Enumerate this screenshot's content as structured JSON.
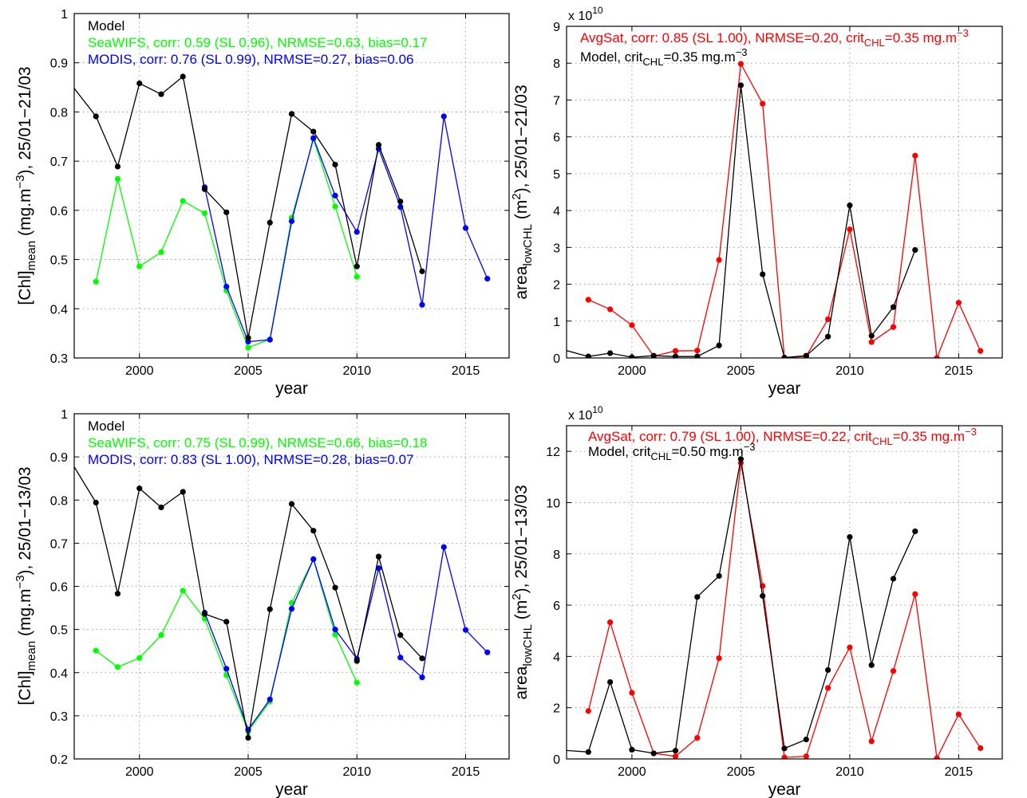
{
  "chart_data": [
    {
      "type": "line",
      "ylabel": {
        "main": "[Chl]",
        "sub": "mean",
        "rest": " (mg.m",
        "sup": "−3",
        "end": "), 25/01−21/03"
      },
      "xlabel": "year",
      "xlim": [
        1997,
        2017
      ],
      "ylim": [
        0.3,
        1
      ],
      "xticks": [
        "2000",
        "2005",
        "2010",
        "2015"
      ],
      "yticks": [
        "0.3",
        "0.4",
        "0.5",
        "0.6",
        "0.7",
        "0.8",
        "0.9",
        "1"
      ],
      "grid": true,
      "legend_lines": [
        {
          "text": "Model",
          "color": "#000000"
        },
        {
          "text": "SeaWIFS, corr: 0.59 (SL 0.96), NRMSE=0.63, bias=0.17",
          "color": "#00ff00"
        },
        {
          "text": "MODIS, corr: 0.76 (SL 0.99), NRMSE=0.27, bias=0.06",
          "color": "#0000ff"
        }
      ],
      "series": [
        {
          "color": "#00ff00",
          "x": [
            1998,
            1999,
            2000,
            2001,
            2002,
            2003,
            2004,
            2005,
            2006,
            2007,
            2008,
            2009,
            2010
          ],
          "y": [
            0.455,
            0.664,
            0.486,
            0.515,
            0.619,
            0.594,
            0.437,
            0.321,
            0.338,
            0.585,
            0.745,
            0.608,
            0.465
          ]
        },
        {
          "color": "#0000ff",
          "x": [
            2003,
            2004,
            2005,
            2006,
            2007,
            2008,
            2009,
            2010,
            2011,
            2012,
            2013,
            2014,
            2015,
            2016
          ],
          "y": [
            0.647,
            0.445,
            0.333,
            0.337,
            0.578,
            0.747,
            0.63,
            0.556,
            0.725,
            0.607,
            0.408,
            0.791,
            0.564,
            0.461
          ]
        },
        {
          "color": "#000000",
          "x": [
            1997,
            1998,
            1999,
            2000,
            2001,
            2002,
            2003,
            2004,
            2005,
            2006,
            2007,
            2008,
            2009,
            2010,
            2011,
            2012,
            2013
          ],
          "y": [
            0.848,
            0.791,
            0.689,
            0.858,
            0.836,
            0.872,
            0.643,
            0.596,
            0.341,
            0.575,
            0.796,
            0.76,
            0.693,
            0.486,
            0.733,
            0.618,
            0.476
          ],
          "dotFrom": 1
        }
      ]
    },
    {
      "type": "line",
      "ylabel": {
        "main": "area",
        "sub": "lowCHL",
        "rest": " (m",
        "sup": "2",
        "end": "), 25/01−21/03"
      },
      "xlabel": "year",
      "multiplier": "x 10",
      "multiplier_exp": "10",
      "xlim": [
        1997,
        2017
      ],
      "ylim": [
        0,
        9
      ],
      "xticks": [
        "2000",
        "2005",
        "2010",
        "2015"
      ],
      "yticks": [
        "0",
        "1",
        "2",
        "3",
        "4",
        "5",
        "6",
        "7",
        "8",
        "9"
      ],
      "grid": true,
      "legend_lines": [
        {
          "text": "AvgSat, corr: 0.85 (SL 1.00), NRMSE=0.20, crit",
          "sub": "CHL",
          "tail": "=0.35 mg.m",
          "sup": "−3",
          "color": "#ff0000"
        },
        {
          "text": "Model, crit",
          "sub": "CHL",
          "tail": "=0.35 mg.m",
          "sup": "−3",
          "color": "#000000"
        }
      ],
      "series": [
        {
          "color": "#ff0000",
          "x": [
            1998,
            1999,
            2000,
            2001,
            2002,
            2003,
            2004,
            2005,
            2006,
            2007,
            2008,
            2009,
            2010,
            2011,
            2012,
            2013,
            2014,
            2015,
            2016
          ],
          "y": [
            1.58,
            1.32,
            0.89,
            0.05,
            0.19,
            0.2,
            2.66,
            7.98,
            6.9,
            0.0,
            0.05,
            1.05,
            3.49,
            0.43,
            0.84,
            5.49,
            0.0,
            1.5,
            0.19
          ]
        },
        {
          "color": "#000000",
          "x": [
            1997,
            1998,
            1999,
            2000,
            2001,
            2002,
            2003,
            2004,
            2005,
            2006,
            2007,
            2008,
            2009,
            2010,
            2011,
            2012,
            2013
          ],
          "y": [
            0.2,
            0.04,
            0.13,
            0.02,
            0.06,
            0.04,
            0.04,
            0.34,
            7.4,
            2.27,
            0.01,
            0.06,
            0.58,
            4.14,
            0.6,
            1.38,
            2.93
          ],
          "dotFrom": 1
        }
      ]
    },
    {
      "type": "line",
      "ylabel": {
        "main": "[Chl]",
        "sub": "mean",
        "rest": " (mg.m",
        "sup": "−3",
        "end": "), 25/01−13/03"
      },
      "xlabel": "year",
      "xlim": [
        1997,
        2017
      ],
      "ylim": [
        0.2,
        1
      ],
      "xticks": [
        "2000",
        "2005",
        "2010",
        "2015"
      ],
      "yticks": [
        "0.2",
        "0.3",
        "0.4",
        "0.5",
        "0.6",
        "0.7",
        "0.8",
        "0.9",
        "1"
      ],
      "grid": true,
      "legend_lines": [
        {
          "text": "Model",
          "color": "#000000"
        },
        {
          "text": "SeaWIFS, corr: 0.75 (SL 0.99), NRMSE=0.66, bias=0.18",
          "color": "#00ff00"
        },
        {
          "text": "MODIS, corr: 0.83 (SL 1.00), NRMSE=0.28, bias=0.07",
          "color": "#0000ff"
        }
      ],
      "series": [
        {
          "color": "#00ff00",
          "x": [
            1998,
            1999,
            2000,
            2001,
            2002,
            2003,
            2004,
            2005,
            2006,
            2007,
            2008,
            2009,
            2010
          ],
          "y": [
            0.451,
            0.413,
            0.434,
            0.487,
            0.59,
            0.525,
            0.394,
            0.264,
            0.333,
            0.562,
            0.663,
            0.488,
            0.377
          ]
        },
        {
          "color": "#0000ff",
          "x": [
            2003,
            2004,
            2005,
            2006,
            2007,
            2008,
            2009,
            2010,
            2011,
            2012,
            2013,
            2014,
            2015,
            2016
          ],
          "y": [
            0.539,
            0.409,
            0.268,
            0.338,
            0.548,
            0.663,
            0.5,
            0.432,
            0.642,
            0.435,
            0.389,
            0.691,
            0.499,
            0.447
          ]
        },
        {
          "color": "#000000",
          "x": [
            1997,
            1998,
            1999,
            2000,
            2001,
            2002,
            2003,
            2004,
            2005,
            2006,
            2007,
            2008,
            2009,
            2010,
            2011,
            2012,
            2013
          ],
          "y": [
            0.877,
            0.794,
            0.583,
            0.827,
            0.783,
            0.819,
            0.536,
            0.518,
            0.249,
            0.547,
            0.791,
            0.729,
            0.597,
            0.427,
            0.669,
            0.487,
            0.433
          ],
          "dotFrom": 1
        }
      ]
    },
    {
      "type": "line",
      "ylabel": {
        "main": "area",
        "sub": "lowCHL",
        "rest": " (m",
        "sup": "2",
        "end": "), 25/01−13/03"
      },
      "xlabel": "year",
      "multiplier": "x 10",
      "multiplier_exp": "10",
      "xlim": [
        1997,
        2017
      ],
      "ylim": [
        0,
        13
      ],
      "xticks": [
        "2000",
        "2005",
        "2010",
        "2015"
      ],
      "yticks": [
        "0",
        "2",
        "4",
        "6",
        "8",
        "10",
        "12"
      ],
      "ytick_values": [
        0,
        2,
        4,
        6,
        8,
        10,
        12
      ],
      "grid": true,
      "legend_lines": [
        {
          "text": "AvgSat, corr: 0.79 (SL 1.00), NRMSE=0.22, crit",
          "sub": "CHL",
          "tail": "=0.35 mg.m",
          "sup": "−3",
          "color": "#ff0000"
        },
        {
          "text": "Model, crit",
          "sub": "CHL",
          "tail": "=0.50 mg.m",
          "sup": "−3",
          "color": "#000000"
        }
      ],
      "series": [
        {
          "color": "#ff0000",
          "x": [
            1998,
            1999,
            2000,
            2001,
            2002,
            2003,
            2004,
            2005,
            2006,
            2007,
            2008,
            2009,
            2010,
            2011,
            2012,
            2013,
            2014,
            2015,
            2016
          ],
          "y": [
            1.87,
            5.33,
            2.58,
            0.22,
            0.1,
            0.82,
            3.93,
            11.55,
            6.75,
            0.06,
            0.1,
            2.77,
            4.35,
            0.69,
            3.43,
            6.43,
            0.03,
            1.74,
            0.42
          ]
        },
        {
          "color": "#000000",
          "x": [
            1997,
            1998,
            1999,
            2000,
            2001,
            2002,
            2003,
            2004,
            2005,
            2006,
            2007,
            2008,
            2009,
            2010,
            2011,
            2012,
            2013
          ],
          "y": [
            0.33,
            0.27,
            3.0,
            0.36,
            0.22,
            0.32,
            6.32,
            7.14,
            11.7,
            6.36,
            0.41,
            0.76,
            3.47,
            8.66,
            3.66,
            7.03,
            8.88
          ],
          "dotFrom": 1
        }
      ]
    }
  ]
}
